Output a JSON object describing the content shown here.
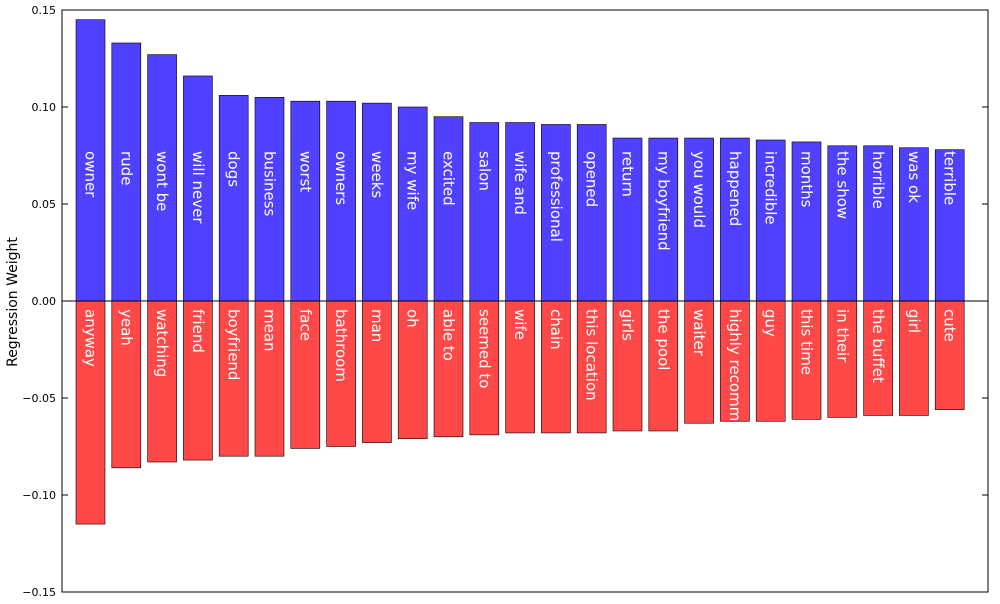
{
  "chart_data": {
    "type": "bar",
    "ylabel": "Regression Weight",
    "ylim": [
      -0.15,
      0.15
    ],
    "yticks": [
      "0.15",
      "0.10",
      "0.05",
      "0.00",
      "−0.05",
      "−0.10",
      "−0.15"
    ],
    "grid": false,
    "colors": {
      "positive": "#5040ff",
      "negative": "#ff4848",
      "frame": "#000000"
    },
    "series": [
      {
        "labels": [
          "owner",
          "rude",
          "wont be",
          "will never",
          "dogs",
          "business",
          "worst",
          "owners",
          "weeks",
          "my wife",
          "excited",
          "salon",
          "wife and",
          "professional",
          "opened",
          "return",
          "my boyfriend",
          "you would",
          "happened",
          "incredible",
          "months",
          "the show",
          "horrible",
          "was ok",
          "terrible"
        ],
        "values": [
          0.145,
          0.133,
          0.127,
          0.116,
          0.106,
          0.105,
          0.103,
          0.103,
          0.102,
          0.1,
          0.095,
          0.092,
          0.092,
          0.091,
          0.091,
          0.084,
          0.084,
          0.084,
          0.084,
          0.083,
          0.082,
          0.08,
          0.08,
          0.079,
          0.078
        ]
      },
      {
        "labels": [
          "anyway",
          "yeah",
          "watching",
          "friend",
          "boyfriend",
          "mean",
          "face",
          "bathroom",
          "man",
          "oh",
          "able to",
          "seemed to",
          "wife",
          "chain",
          "this location",
          "girls",
          "the pool",
          "waiter",
          "highly recomm",
          "guy",
          "this time",
          "in their",
          "the buffet",
          "girl",
          "cute"
        ],
        "values": [
          -0.115,
          -0.086,
          -0.083,
          -0.082,
          -0.08,
          -0.08,
          -0.076,
          -0.075,
          -0.073,
          -0.071,
          -0.07,
          -0.069,
          -0.068,
          -0.068,
          -0.068,
          -0.067,
          -0.067,
          -0.063,
          -0.062,
          -0.062,
          -0.061,
          -0.06,
          -0.059,
          -0.059,
          -0.056
        ]
      }
    ]
  }
}
